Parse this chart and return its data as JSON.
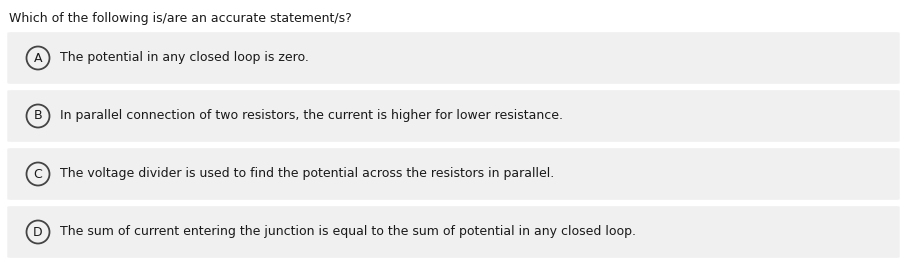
{
  "question": "Which of the following is/are an accurate statement/s?",
  "options": [
    {
      "label": "A",
      "text": "The potential in any closed loop is zero."
    },
    {
      "label": "B",
      "text": "In parallel connection of two resistors, the current is higher for lower resistance."
    },
    {
      "label": "C",
      "text": "The voltage divider is used to find the potential across the resistors in parallel."
    },
    {
      "label": "D",
      "text": "The sum of current entering the junction is equal to the sum of potential in any closed loop."
    }
  ],
  "bg_color": "#ffffff",
  "option_bg_color": "#f0f0f0",
  "question_fontsize": 9.0,
  "option_fontsize": 9.0,
  "question_color": "#1a1a1a",
  "option_text_color": "#1a1a1a",
  "circle_edge_color": "#444444",
  "label_fontsize": 9.0,
  "fig_width": 9.07,
  "fig_height": 2.68,
  "dpi": 100
}
